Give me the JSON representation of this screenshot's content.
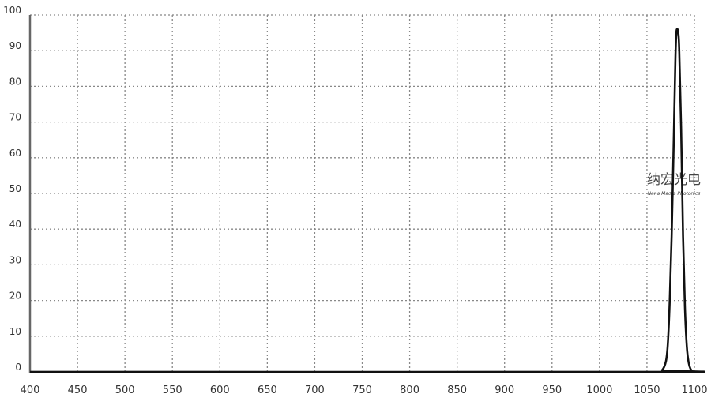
{
  "chart_data": {
    "type": "line",
    "title": "",
    "xlabel": "",
    "ylabel": "",
    "xlim": [
      400,
      1100
    ],
    "ylim": [
      0,
      100
    ],
    "x_ticks": [
      400,
      450,
      500,
      550,
      600,
      650,
      700,
      750,
      800,
      850,
      900,
      950,
      1000,
      1050,
      1100
    ],
    "y_ticks": [
      0,
      10,
      20,
      30,
      40,
      50,
      60,
      70,
      80,
      90,
      100
    ],
    "grid": true,
    "grid_style": "dotted",
    "line_color": "#111111",
    "series": [
      {
        "x": [
          400,
          1060,
          1066,
          1070,
          1072,
          1074,
          1076,
          1078,
          1080,
          1081,
          1082,
          1083,
          1084,
          1086,
          1088,
          1090,
          1092,
          1094,
          1096,
          1098,
          1100
        ],
        "y": [
          0,
          0,
          0.5,
          3,
          8,
          20,
          38,
          62,
          88,
          95,
          96,
          95,
          90,
          68,
          38,
          18,
          7,
          2.5,
          0.8,
          0.2,
          0
        ]
      }
    ]
  },
  "watermark": {
    "cn": "纳宏光电",
    "en": "Nano Macro Photonics"
  }
}
